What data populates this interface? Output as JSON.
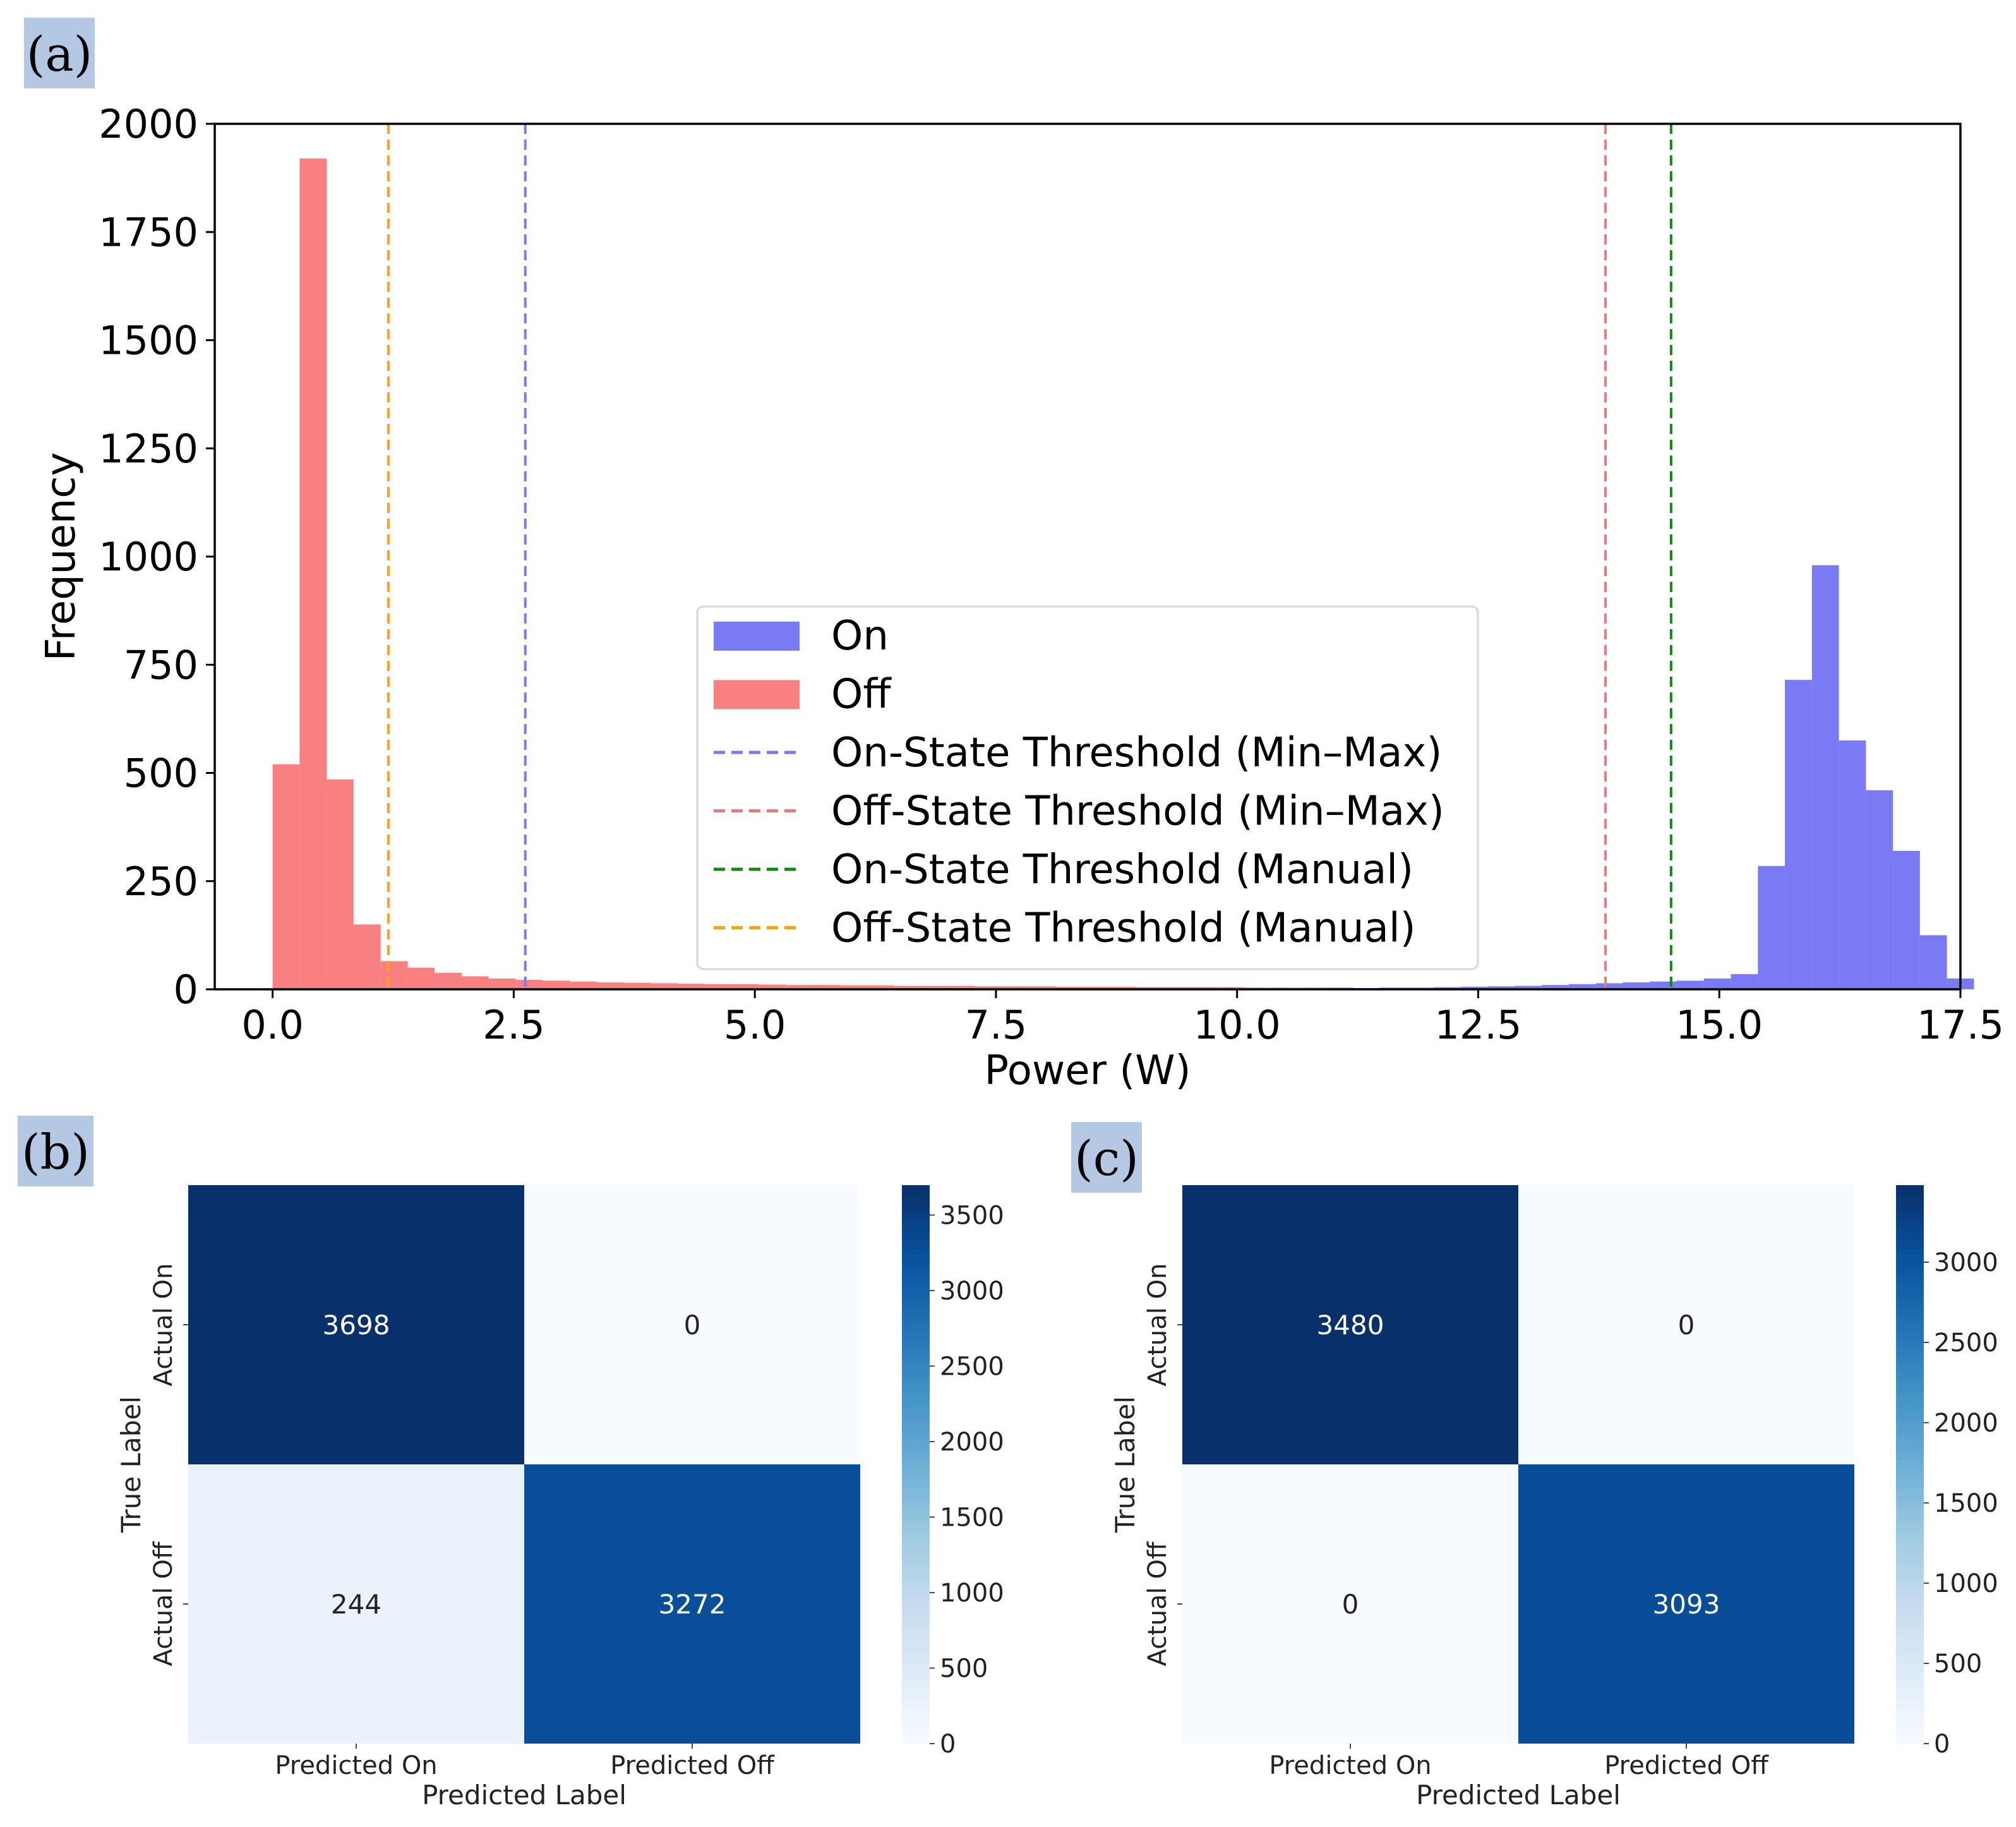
{
  "panels": {
    "a": "(a)",
    "b": "(b)",
    "c": "(c)"
  },
  "colors": {
    "on": "#7a7af5",
    "off": "#f88080",
    "on_minmax": "#7878f0",
    "off_minmax": "#f07878",
    "on_manual": "#118a11",
    "off_manual": "#f5a31a"
  },
  "chart_data": [
    {
      "id": "histogram",
      "type": "bar",
      "title": "",
      "xlabel": "Power (W)",
      "ylabel": "Frequency",
      "xlim": [
        -0.6,
        17.5
      ],
      "ylim": [
        0,
        2000
      ],
      "xticks": [
        0.0,
        2.5,
        5.0,
        7.5,
        10.0,
        12.5,
        15.0,
        17.5
      ],
      "xtick_labels": [
        "0.0",
        "2.5",
        "5.0",
        "7.5",
        "10.0",
        "12.5",
        "15.0",
        "17.5"
      ],
      "yticks": [
        0,
        250,
        500,
        750,
        1000,
        1250,
        1500,
        1750,
        2000
      ],
      "ytick_labels": [
        "0",
        "250",
        "500",
        "750",
        "1000",
        "1250",
        "1500",
        "1750",
        "2000"
      ],
      "bin_width": 0.28,
      "series": [
        {
          "name": "Off",
          "color": "#f88080",
          "bin_start": 0.0,
          "values": [
            520,
            1920,
            485,
            150,
            65,
            50,
            38,
            30,
            25,
            22,
            20,
            18,
            16,
            15,
            14,
            13,
            12,
            12,
            11,
            10,
            10,
            9,
            9,
            8,
            8,
            8,
            7,
            7,
            7,
            6,
            6,
            6,
            5,
            5,
            5,
            5,
            4,
            4,
            4,
            4,
            3,
            3,
            3,
            3,
            3,
            3,
            2,
            2,
            2,
            2
          ]
        },
        {
          "name": "On",
          "color": "#7a7af5",
          "bin_start": 10.36,
          "values": [
            2,
            2,
            3,
            3,
            4,
            4,
            5,
            6,
            7,
            8,
            10,
            12,
            14,
            16,
            18,
            20,
            25,
            35,
            285,
            715,
            980,
            575,
            460,
            320,
            125,
            25
          ]
        }
      ],
      "thresholds": [
        {
          "name": "On-State Threshold (Min–Max)",
          "x": 2.62,
          "color": "#7878f0"
        },
        {
          "name": "Off-State Threshold (Min–Max)",
          "x": 13.82,
          "color": "#f07878"
        },
        {
          "name": "On-State Threshold (Manual)",
          "x": 14.5,
          "color": "#118a11"
        },
        {
          "name": "Off-State Threshold (Manual)",
          "x": 1.2,
          "color": "#f5a31a"
        }
      ],
      "legend": {
        "placement": "center-right",
        "entries": [
          {
            "label": "On",
            "kind": "patch",
            "color": "#7a7af5"
          },
          {
            "label": "Off",
            "kind": "patch",
            "color": "#f88080"
          },
          {
            "label": "On-State Threshold (Min–Max)",
            "kind": "dashed",
            "color": "#7878f0"
          },
          {
            "label": "Off-State Threshold (Min–Max)",
            "kind": "dashed",
            "color": "#f07878"
          },
          {
            "label": "On-State Threshold (Manual)",
            "kind": "dashed",
            "color": "#118a11"
          },
          {
            "label": "Off-State Threshold (Manual)",
            "kind": "dashed",
            "color": "#f5a31a"
          }
        ]
      }
    },
    {
      "id": "cm_b",
      "type": "heatmap",
      "xlabel": "Predicted Label",
      "ylabel": "True Label",
      "x_categories": [
        "Predicted On",
        "Predicted Off"
      ],
      "y_categories": [
        "Actual On",
        "Actual Off"
      ],
      "values": [
        [
          3698,
          0
        ],
        [
          244,
          3272
        ]
      ],
      "colorbar": {
        "min": 0,
        "max": 3698,
        "ticks": [
          0,
          500,
          1000,
          1500,
          2000,
          2500,
          3000,
          3500
        ]
      }
    },
    {
      "id": "cm_c",
      "type": "heatmap",
      "xlabel": "Predicted Label",
      "ylabel": "True Label",
      "x_categories": [
        "Predicted On",
        "Predicted Off"
      ],
      "y_categories": [
        "Actual On",
        "Actual Off"
      ],
      "values": [
        [
          3480,
          0
        ],
        [
          0,
          3093
        ]
      ],
      "colorbar": {
        "min": 0,
        "max": 3480,
        "ticks": [
          0,
          500,
          1000,
          1500,
          2000,
          2500,
          3000
        ]
      }
    }
  ]
}
